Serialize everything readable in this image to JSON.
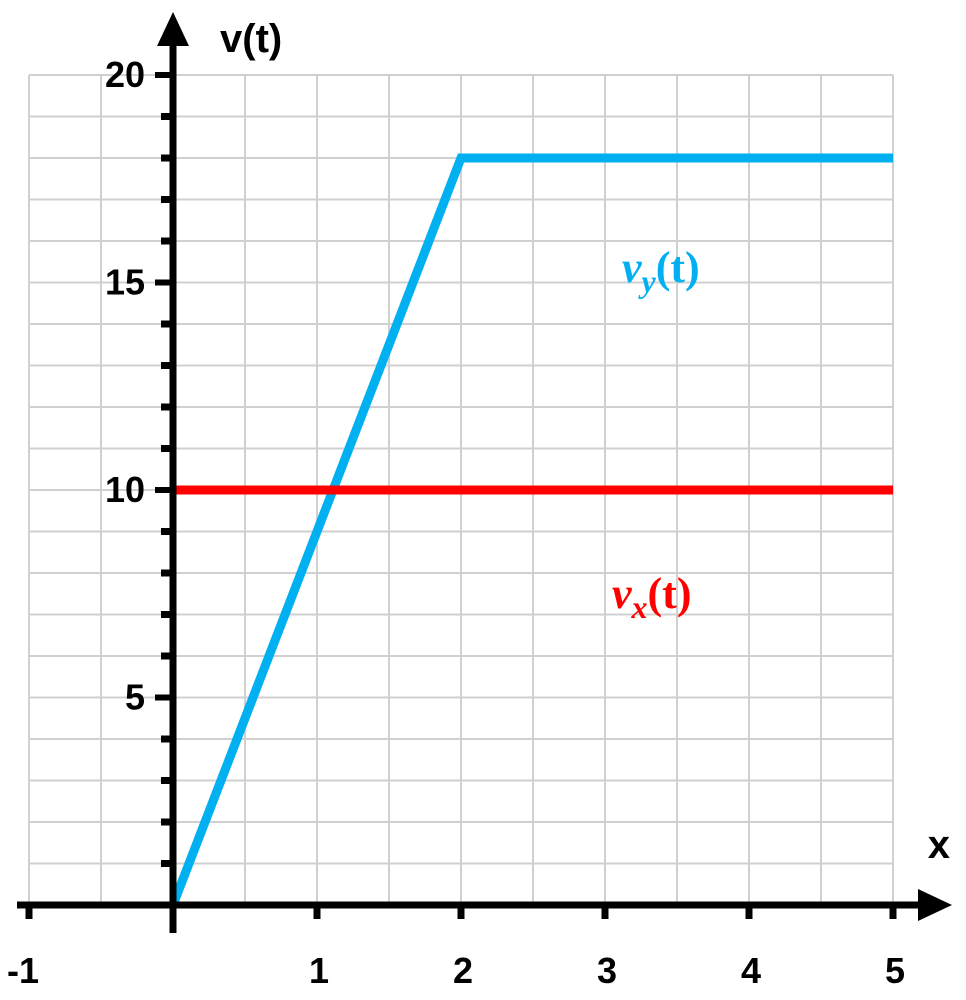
{
  "chart_data": {
    "type": "line",
    "xlabel": "x",
    "ylabel": "v(t)",
    "xlim": [
      -1,
      5
    ],
    "ylim": [
      0,
      20
    ],
    "xticks": [
      -1,
      1,
      2,
      3,
      4,
      5
    ],
    "yticks": [
      5,
      10,
      15,
      20
    ],
    "x_minor_step": 0.5,
    "y_minor_step": 1,
    "grid": true,
    "series": [
      {
        "name": "v_y(t)",
        "label_main": "v",
        "label_sub": "y",
        "label_rest": "(t)",
        "color": "#00b0f0",
        "x": [
          0,
          2,
          5
        ],
        "y": [
          0,
          18,
          18
        ]
      },
      {
        "name": "v_x(t)",
        "label_main": "v",
        "label_sub": "x",
        "label_rest": "(t)",
        "color": "#ff0000",
        "x": [
          0,
          5
        ],
        "y": [
          10,
          10
        ]
      }
    ]
  }
}
